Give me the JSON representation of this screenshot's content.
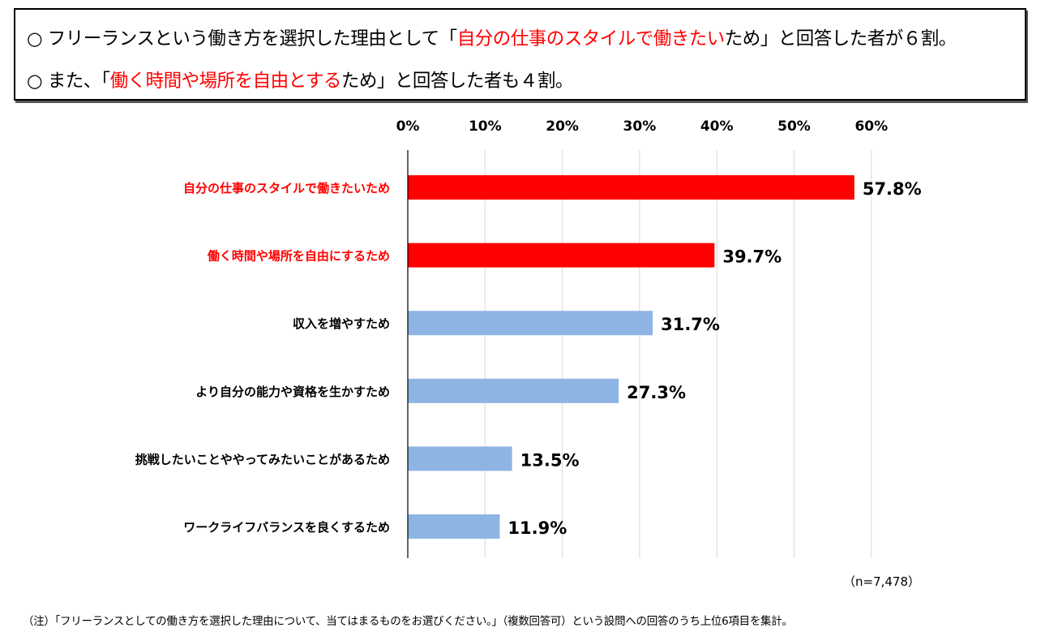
{
  "summary": {
    "line1": {
      "bullet": "○",
      "pre": "フリーランスという働き方を選択した理由として「",
      "highlight": "自分の仕事のスタイルで働きたい",
      "post": "ため」と回答した者が６割。"
    },
    "line2": {
      "bullet": "○",
      "pre": "また、「",
      "highlight": "働く時間や場所を自由とする",
      "post": "ため」と回答した者も４割。"
    }
  },
  "chart_data": {
    "type": "bar",
    "orientation": "horizontal",
    "categories": [
      "自分の仕事のスタイルで働きたいため",
      "働く時間や場所を自由にするため",
      "収入を増やすため",
      "より自分の能力や資格を生かすため",
      "挑戦したいことややってみたいことがあるため",
      "ワークライフバランスを良くするため"
    ],
    "values": [
      57.8,
      39.7,
      31.7,
      27.3,
      13.5,
      11.9
    ],
    "value_labels": [
      "57.8%",
      "39.7%",
      "31.7%",
      "27.3%",
      "13.5%",
      "11.9%"
    ],
    "ticks": [
      0,
      10,
      20,
      30,
      40,
      50,
      60
    ],
    "tick_labels": [
      "0%",
      "10%",
      "20%",
      "30%",
      "40%",
      "50%",
      "60%"
    ],
    "xlim": [
      0,
      60
    ],
    "axis_position": "top",
    "grid": true,
    "highlight_count": 2,
    "colors": {
      "highlight": "#ff0000",
      "normal": "#8eb4e3",
      "grid": "#d9d9d9"
    }
  },
  "sample_size": "（n=7,478）",
  "note": "（注）「フリーランスとしての働き方を選択した理由について、当てはまるものをお選びください。」（複数回答可）という設問への回答のうち上位6項目を集計。"
}
